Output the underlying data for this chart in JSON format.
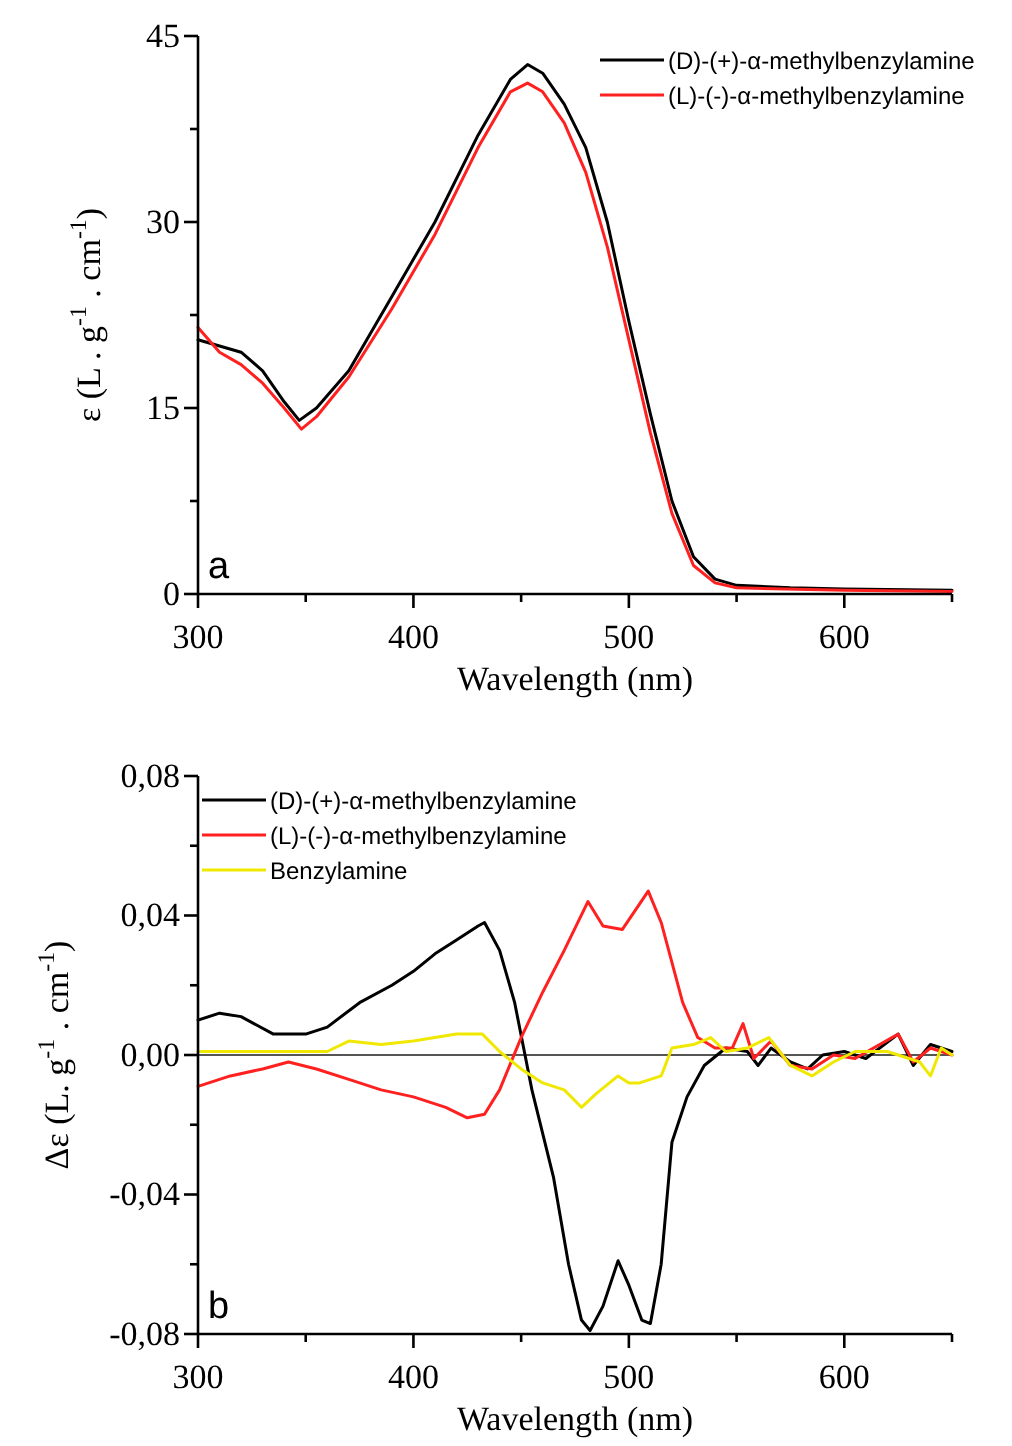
{
  "chart_data": [
    {
      "type": "line",
      "xlabel": "Wavelength (nm)",
      "ylabel": "ε (L . g$^{-1}$ . cm$^{-1}$)",
      "xlim": [
        300,
        650
      ],
      "xticks": [
        300,
        {
          "value": 350,
          "label": null
        },
        400,
        {
          "value": 450,
          "label": null
        },
        500,
        {
          "value": 550,
          "label": null
        },
        600,
        {
          "value": 650,
          "label": null
        }
      ],
      "ylim": [
        0,
        45
      ],
      "yticks": [
        0,
        {
          "value": 7.5,
          "label": null
        },
        15,
        {
          "value": 22.5,
          "label": null
        },
        30,
        {
          "value": 37.5,
          "label": null
        },
        45
      ],
      "legend": "top right",
      "grid": false,
      "annotations": [
        "a"
      ],
      "series": [
        {
          "name": "(D)-(+)-α-methylbenzylamine",
          "color": "#000000",
          "x": [
            300,
            310,
            320,
            330,
            340,
            347,
            355,
            370,
            390,
            410,
            430,
            445,
            453,
            460,
            470,
            480,
            490,
            500,
            510,
            520,
            530,
            540,
            550,
            575,
            600,
            650
          ],
          "values": [
            20.5,
            20,
            19.5,
            18,
            15.5,
            14,
            15,
            18,
            24,
            30,
            37,
            41.5,
            42.7,
            42,
            39.5,
            36,
            30,
            22,
            14.5,
            7.5,
            3,
            1.2,
            0.7,
            0.5,
            0.4,
            0.3
          ]
        },
        {
          "name": "(L)-(-)-α-methylbenzylamine",
          "color": "#ff2020",
          "x": [
            300,
            310,
            320,
            330,
            340,
            348,
            355,
            370,
            390,
            410,
            430,
            445,
            453,
            460,
            470,
            480,
            490,
            500,
            510,
            520,
            530,
            540,
            550,
            600,
            650
          ],
          "values": [
            21.5,
            19.5,
            18.5,
            17,
            15,
            13.3,
            14.3,
            17.5,
            23,
            29,
            36,
            40.5,
            41.2,
            40.5,
            38,
            34,
            28,
            20.5,
            13,
            6.5,
            2.3,
            0.9,
            0.5,
            0.3,
            0.2
          ]
        }
      ]
    },
    {
      "type": "line",
      "xlabel": "Wavelength (nm)",
      "ylabel": "Δε (L. g$^{-1}$ . cm$^{-1}$)",
      "xlim": [
        300,
        650
      ],
      "xticks": [
        300,
        {
          "value": 350,
          "label": null
        },
        400,
        {
          "value": 450,
          "label": null
        },
        500,
        {
          "value": 550,
          "label": null
        },
        600,
        {
          "value": 650,
          "label": null
        }
      ],
      "ylim": [
        -0.08,
        0.08
      ],
      "yticks": [
        {
          "value": -0.08,
          "label": "-0,08"
        },
        {
          "value": -0.06,
          "label": null
        },
        {
          "value": -0.04,
          "label": "-0,04"
        },
        {
          "value": -0.02,
          "label": null
        },
        {
          "value": 0,
          "label": "0,00"
        },
        {
          "value": 0.02,
          "label": null
        },
        {
          "value": 0.04,
          "label": "0,04"
        },
        {
          "value": 0.06,
          "label": null
        },
        {
          "value": 0.08,
          "label": "0,08"
        }
      ],
      "legend": "top left",
      "grid": false,
      "annotations": [
        "b"
      ],
      "ref_lines": [
        {
          "axis": "y",
          "value": 0,
          "color": "#555555"
        }
      ],
      "series": [
        {
          "name": "(D)-(+)-α-methylbenzylamine",
          "color": "#000000",
          "x": [
            300,
            310,
            320,
            335,
            350,
            360,
            375,
            390,
            400,
            410,
            420,
            430,
            433,
            440,
            447,
            455,
            465,
            472,
            478,
            482,
            488,
            495,
            500,
            506,
            510,
            515,
            520,
            527,
            535,
            545,
            555,
            560,
            566,
            575,
            583,
            590,
            600,
            610,
            625,
            632,
            640,
            650
          ],
          "values": [
            0.01,
            0.012,
            0.011,
            0.006,
            0.006,
            0.008,
            0.015,
            0.02,
            0.024,
            0.029,
            0.033,
            0.037,
            0.038,
            0.03,
            0.015,
            -0.01,
            -0.035,
            -0.06,
            -0.076,
            -0.079,
            -0.072,
            -0.059,
            -0.066,
            -0.076,
            -0.077,
            -0.06,
            -0.025,
            -0.012,
            -0.003,
            0.002,
            0.001,
            -0.003,
            0.002,
            -0.002,
            -0.004,
            0.0,
            0.001,
            -0.001,
            0.006,
            -0.003,
            0.003,
            0.001
          ]
        },
        {
          "name": "(L)-(-)-α-methylbenzylamine",
          "color": "#ff2020",
          "x": [
            300,
            315,
            330,
            342,
            355,
            370,
            385,
            400,
            415,
            425,
            433,
            440,
            450,
            460,
            470,
            481,
            488,
            497,
            509,
            515,
            525,
            532,
            540,
            548,
            553,
            558,
            566,
            575,
            585,
            595,
            605,
            625,
            632,
            640,
            650
          ],
          "values": [
            -0.009,
            -0.006,
            -0.004,
            -0.002,
            -0.004,
            -0.007,
            -0.01,
            -0.012,
            -0.015,
            -0.018,
            -0.017,
            -0.01,
            0.005,
            0.018,
            0.03,
            0.044,
            0.037,
            0.036,
            0.047,
            0.038,
            0.015,
            0.005,
            0.002,
            0.002,
            0.009,
            -0.001,
            0.004,
            -0.003,
            -0.004,
            0.0,
            -0.001,
            0.006,
            -0.002,
            0.002,
            0.0
          ]
        },
        {
          "name": "Benzylamine",
          "color": "#f0e800",
          "x": [
            300,
            320,
            340,
            360,
            370,
            385,
            400,
            420,
            432,
            440,
            450,
            460,
            470,
            478,
            485,
            495,
            500,
            505,
            515,
            520,
            530,
            538,
            545,
            555,
            565,
            575,
            585,
            595,
            605,
            620,
            635,
            640,
            645,
            650
          ],
          "values": [
            0.001,
            0.001,
            0.001,
            0.001,
            0.004,
            0.003,
            0.004,
            0.006,
            0.006,
            0.001,
            -0.004,
            -0.008,
            -0.01,
            -0.015,
            -0.011,
            -0.006,
            -0.008,
            -0.008,
            -0.006,
            0.002,
            0.003,
            0.005,
            0.001,
            0.002,
            0.005,
            -0.003,
            -0.006,
            -0.002,
            0.001,
            0.001,
            -0.002,
            -0.006,
            0.002,
            0.0
          ]
        }
      ]
    }
  ]
}
